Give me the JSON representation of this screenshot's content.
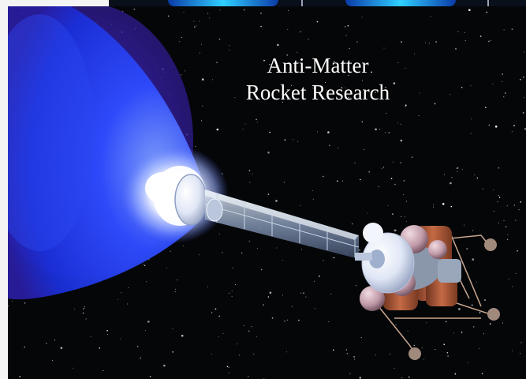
{
  "caption": {
    "line1": "Anti-Matter",
    "line2": "Rocket Research"
  },
  "colors": {
    "space": "#050608",
    "plume": "#1f3cff",
    "plume_edge": "#3b1bb0",
    "glow": "#ffffff",
    "tank": "#b05a3a",
    "sphere": "#c9a2b0"
  }
}
